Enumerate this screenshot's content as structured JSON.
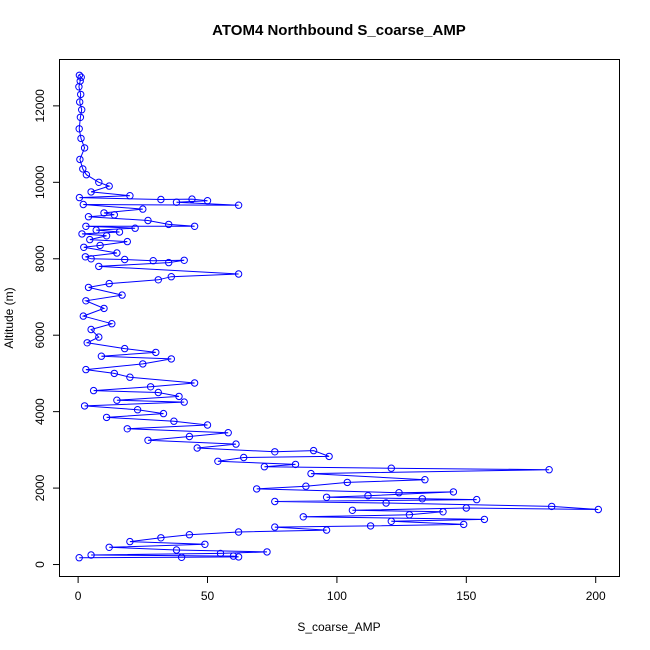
{
  "chart_data": {
    "type": "scatter",
    "title": "ATOM4 Northbound S_coarse_AMP",
    "xlabel": "S_coarse_AMP",
    "ylabel": "Altitude (m)",
    "xlim": [
      -7,
      209
    ],
    "ylim": [
      -300,
      13200
    ],
    "xticks": [
      0,
      50,
      100,
      150,
      200
    ],
    "yticks": [
      0,
      2000,
      4000,
      6000,
      8000,
      10000,
      12000
    ],
    "grid": false,
    "legend": "none",
    "marker": "open-circle",
    "connected": true,
    "series_color": "#0000ff",
    "series": [
      {
        "points": [
          [
            0.5,
            12800
          ],
          [
            1.2,
            12750
          ],
          [
            0.8,
            12650
          ],
          [
            0.3,
            12500
          ],
          [
            1.0,
            12300
          ],
          [
            0.6,
            12100
          ],
          [
            1.4,
            11900
          ],
          [
            0.9,
            11700
          ],
          [
            0.4,
            11400
          ],
          [
            1.1,
            11150
          ],
          [
            2.5,
            10900
          ],
          [
            0.7,
            10600
          ],
          [
            1.8,
            10350
          ],
          [
            3.2,
            10200
          ],
          [
            8.0,
            10000
          ],
          [
            12.0,
            9900
          ],
          [
            5.0,
            9750
          ],
          [
            20.0,
            9650
          ],
          [
            0.5,
            9600
          ],
          [
            32.0,
            9550
          ],
          [
            44.0,
            9560
          ],
          [
            50.0,
            9520
          ],
          [
            38.0,
            9480
          ],
          [
            62.0,
            9400
          ],
          [
            2.0,
            9420
          ],
          [
            25.0,
            9300
          ],
          [
            10.0,
            9200
          ],
          [
            14.0,
            9150
          ],
          [
            4.0,
            9100
          ],
          [
            27.0,
            9000
          ],
          [
            35.0,
            8900
          ],
          [
            45.0,
            8850
          ],
          [
            3.0,
            8850
          ],
          [
            22.0,
            8800
          ],
          [
            7.0,
            8750
          ],
          [
            16.0,
            8700
          ],
          [
            1.5,
            8650
          ],
          [
            11.0,
            8600
          ],
          [
            4.5,
            8500
          ],
          [
            19.0,
            8450
          ],
          [
            8.5,
            8350
          ],
          [
            2.2,
            8300
          ],
          [
            15.0,
            8150
          ],
          [
            2.8,
            8050
          ],
          [
            5.0,
            8000
          ],
          [
            18.0,
            7980
          ],
          [
            29.0,
            7950
          ],
          [
            41.0,
            7960
          ],
          [
            35.0,
            7900
          ],
          [
            8.0,
            7800
          ],
          [
            62.0,
            7600
          ],
          [
            36.0,
            7530
          ],
          [
            31.0,
            7450
          ],
          [
            12.0,
            7350
          ],
          [
            4.0,
            7250
          ],
          [
            17.0,
            7050
          ],
          [
            3.0,
            6900
          ],
          [
            10.0,
            6700
          ],
          [
            2.0,
            6500
          ],
          [
            13.0,
            6300
          ],
          [
            5.0,
            6150
          ],
          [
            8.0,
            5950
          ],
          [
            3.5,
            5800
          ],
          [
            18.0,
            5650
          ],
          [
            30.0,
            5550
          ],
          [
            9.0,
            5450
          ],
          [
            36.0,
            5380
          ],
          [
            25.0,
            5250
          ],
          [
            3.0,
            5100
          ],
          [
            14.0,
            5000
          ],
          [
            20.0,
            4900
          ],
          [
            45.0,
            4750
          ],
          [
            28.0,
            4650
          ],
          [
            6.0,
            4550
          ],
          [
            31.0,
            4500
          ],
          [
            39.0,
            4400
          ],
          [
            15.0,
            4300
          ],
          [
            41.0,
            4250
          ],
          [
            2.5,
            4150
          ],
          [
            23.0,
            4050
          ],
          [
            33.0,
            3950
          ],
          [
            11.0,
            3850
          ],
          [
            37.0,
            3750
          ],
          [
            50.0,
            3650
          ],
          [
            19.0,
            3550
          ],
          [
            58.0,
            3450
          ],
          [
            43.0,
            3350
          ],
          [
            27.0,
            3250
          ],
          [
            61.0,
            3150
          ],
          [
            46.0,
            3050
          ],
          [
            76.0,
            2950
          ],
          [
            91.0,
            2980
          ],
          [
            97.0,
            2830
          ],
          [
            64.0,
            2800
          ],
          [
            54.0,
            2700
          ],
          [
            84.0,
            2620
          ],
          [
            72.0,
            2560
          ],
          [
            121.0,
            2520
          ],
          [
            182.0,
            2480
          ],
          [
            90.0,
            2380
          ],
          [
            134.0,
            2220
          ],
          [
            104.0,
            2150
          ],
          [
            88.0,
            2050
          ],
          [
            69.0,
            1980
          ],
          [
            124.0,
            1880
          ],
          [
            145.0,
            1900
          ],
          [
            112.0,
            1800
          ],
          [
            96.0,
            1760
          ],
          [
            133.0,
            1720
          ],
          [
            154.0,
            1700
          ],
          [
            76.0,
            1650
          ],
          [
            119.0,
            1610
          ],
          [
            183.0,
            1520
          ],
          [
            201.0,
            1440
          ],
          [
            150.0,
            1480
          ],
          [
            106.0,
            1420
          ],
          [
            141.0,
            1380
          ],
          [
            128.0,
            1300
          ],
          [
            87.0,
            1250
          ],
          [
            157.0,
            1180
          ],
          [
            121.0,
            1130
          ],
          [
            149.0,
            1050
          ],
          [
            113.0,
            1010
          ],
          [
            76.0,
            980
          ],
          [
            96.0,
            900
          ],
          [
            62.0,
            850
          ],
          [
            43.0,
            780
          ],
          [
            32.0,
            700
          ],
          [
            20.0,
            600
          ],
          [
            49.0,
            530
          ],
          [
            12.0,
            450
          ],
          [
            38.0,
            380
          ],
          [
            73.0,
            330
          ],
          [
            55.0,
            290
          ],
          [
            5.0,
            250
          ],
          [
            60.0,
            220
          ],
          [
            62.0,
            200
          ],
          [
            40.0,
            190
          ],
          [
            0.4,
            180
          ]
        ]
      }
    ]
  }
}
